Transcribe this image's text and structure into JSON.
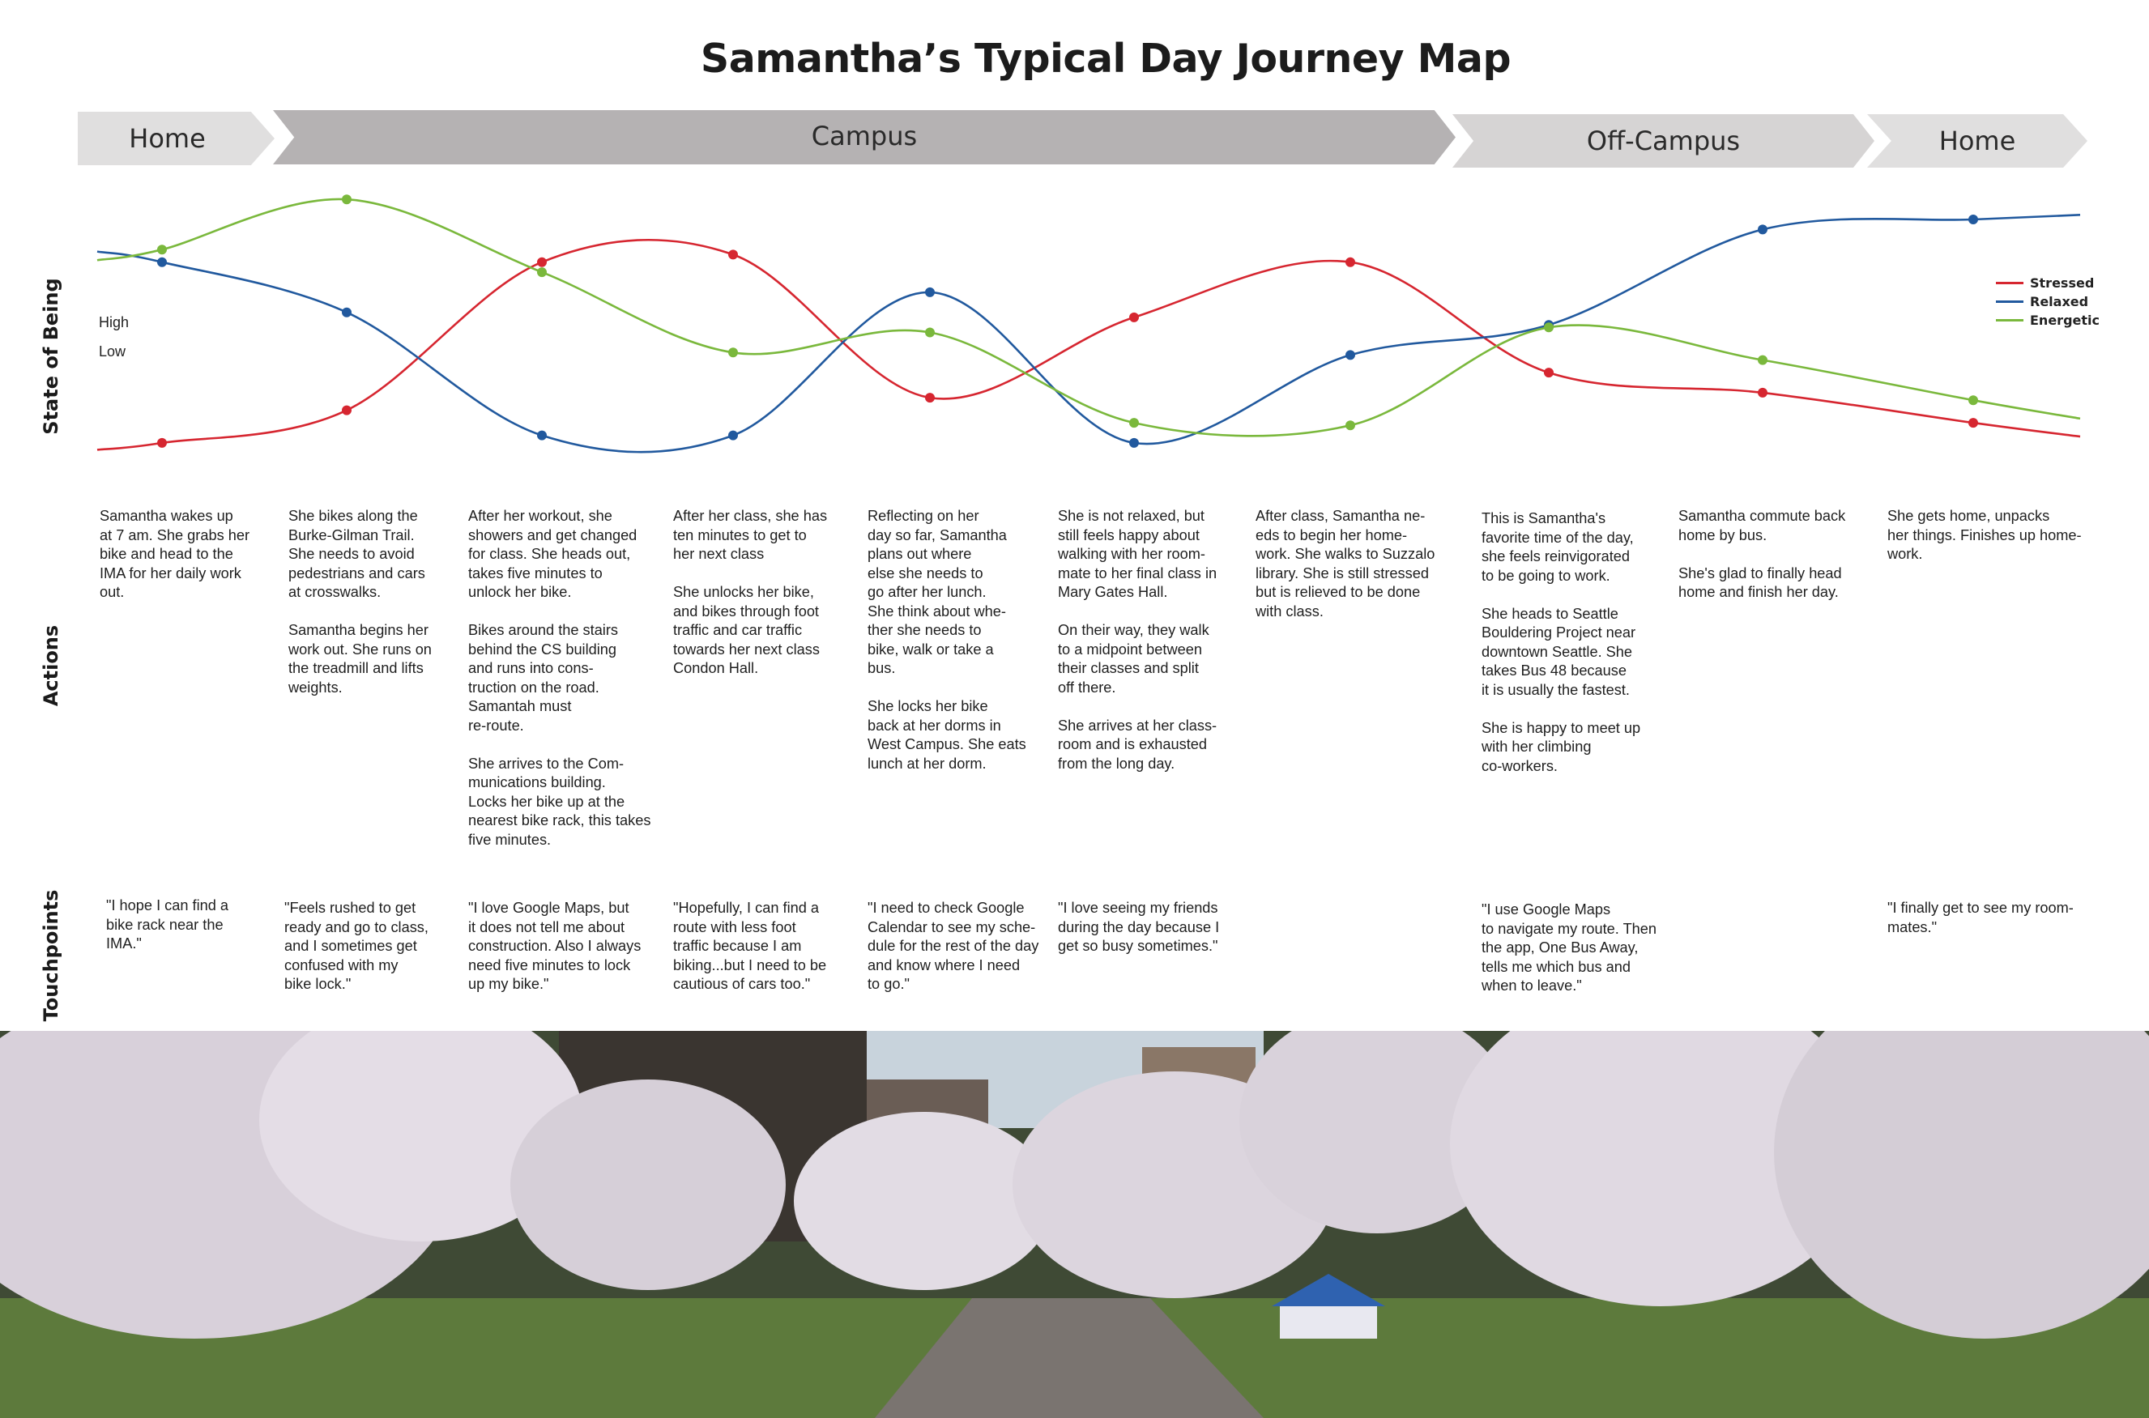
{
  "title": "Samantha’s Typical Day Journey Map",
  "phases": [
    {
      "label": "Home"
    },
    {
      "label": "Campus"
    },
    {
      "label": "Off-Campus"
    },
    {
      "label": "Home"
    }
  ],
  "row_labels": {
    "state": "State of Being",
    "actions": "Actions",
    "touchpoints": "Touchpoints"
  },
  "levels": {
    "high": "High",
    "low": "Low"
  },
  "chart_data": {
    "type": "line",
    "x": [
      1,
      2,
      3,
      4,
      5,
      6,
      7,
      8,
      9,
      10
    ],
    "ylim": [
      0,
      1
    ],
    "series": [
      {
        "name": "Stressed",
        "color": "#d62630",
        "values": [
          0.01,
          0.14,
          0.73,
          0.76,
          0.19,
          0.51,
          0.73,
          0.29,
          0.21,
          0.09
        ]
      },
      {
        "name": "Relaxed",
        "color": "#21599e",
        "values": [
          0.73,
          0.53,
          0.04,
          0.04,
          0.61,
          0.01,
          0.36,
          0.48,
          0.86,
          0.9
        ]
      },
      {
        "name": "Energetic",
        "color": "#7ab83c",
        "values": [
          0.78,
          0.98,
          0.69,
          0.37,
          0.45,
          0.09,
          0.08,
          0.47,
          0.34,
          0.18
        ]
      }
    ],
    "legend_position": "top-right",
    "grid": false
  },
  "legend": [
    {
      "label": "Stressed",
      "color": "#d62630"
    },
    {
      "label": "Relaxed",
      "color": "#21599e"
    },
    {
      "label": "Energetic",
      "color": "#7ab83c"
    }
  ],
  "actions": [
    [
      "Samantha wakes up\nat 7 am. She grabs her\nbike and head to the\nIMA for her daily work\nout."
    ],
    [
      "She bikes along the\nBurke-Gilman Trail.\nShe needs to avoid\npedestrians and cars\nat crosswalks.",
      "Samantha begins her\nwork out. She runs on\nthe treadmill and lifts\nweights."
    ],
    [
      "After her workout, she\nshowers and get changed\nfor class. She heads out,\ntakes five minutes to\nunlock her bike.",
      "Bikes around the stairs\nbehind the CS building\nand runs into cons-\ntruction on the road.\nSamantah must\nre-route.",
      "She arrives to the Com-\nmunications building.\nLocks her bike up at the\nnearest bike rack, this takes\nfive minutes."
    ],
    [
      "After her class, she has\nten minutes to get to\nher next class",
      "She unlocks her bike,\nand bikes through foot\ntraffic and car traffic\ntowards her next class\nCondon Hall."
    ],
    [
      "Reflecting on her\nday so far, Samantha\nplans out where\nelse she needs to\ngo after her lunch.\nShe think about whe-\nther she needs to\nbike, walk or take a\nbus.",
      "She locks her bike\nback at her dorms in\nWest Campus. She eats\nlunch at her dorm."
    ],
    [
      "She is not relaxed, but\nstill feels happy about\nwalking with her room-\nmate to her final class in\nMary Gates Hall.",
      "On their way, they walk\nto a midpoint between\ntheir classes and split\noff there.",
      "She arrives at her class-\nroom and is exhausted\nfrom the long day."
    ],
    [
      "After class, Samantha ne-\neds to begin her home-\nwork. She walks to Suzzalo\nlibrary. She is still stressed\nbut is relieved to be done\nwith class."
    ],
    [
      "This is Samantha's\nfavorite time of the day,\nshe feels reinvigorated\nto be going to work.",
      "She heads to Seattle\nBouldering Project near\ndowntown Seattle. She\ntakes Bus 48 because\nit is usually the fastest.",
      "She is happy to meet up\nwith her climbing\nco-workers."
    ],
    [
      "Samantha commute back\nhome by bus.",
      "She's glad to finally head\nhome and finish her day."
    ],
    [
      "She gets home, unpacks\nher things. Finishes up home-\nwork."
    ]
  ],
  "touchpoints": [
    "\"I hope I can find a\n bike rack near the\nIMA.\"",
    "\"Feels rushed to get\nready and go to class,\nand I sometimes get\nconfused with my\nbike lock.\"",
    "\"I love Google Maps, but\nit does not tell me about\nconstruction. Also I always\nneed five minutes to lock\nup my bike.\"",
    "\"Hopefully, I can find a\nroute with less foot\ntraffic because I am\nbiking...but I need to be\ncautious of cars too.\"",
    "\"I need to check Google\nCalendar to see my sche-\ndule for the rest of the day\nand know where I need\nto go.\"",
    "\"I love seeing my friends\nduring the day because I\nget so busy sometimes.\"",
    "\"I use Google Maps\nto navigate my route. Then\nthe app, One Bus Away,\ntells me which bus and\nwhen to leave.\"",
    "\"I finally get to see my room-\nmates.\""
  ]
}
